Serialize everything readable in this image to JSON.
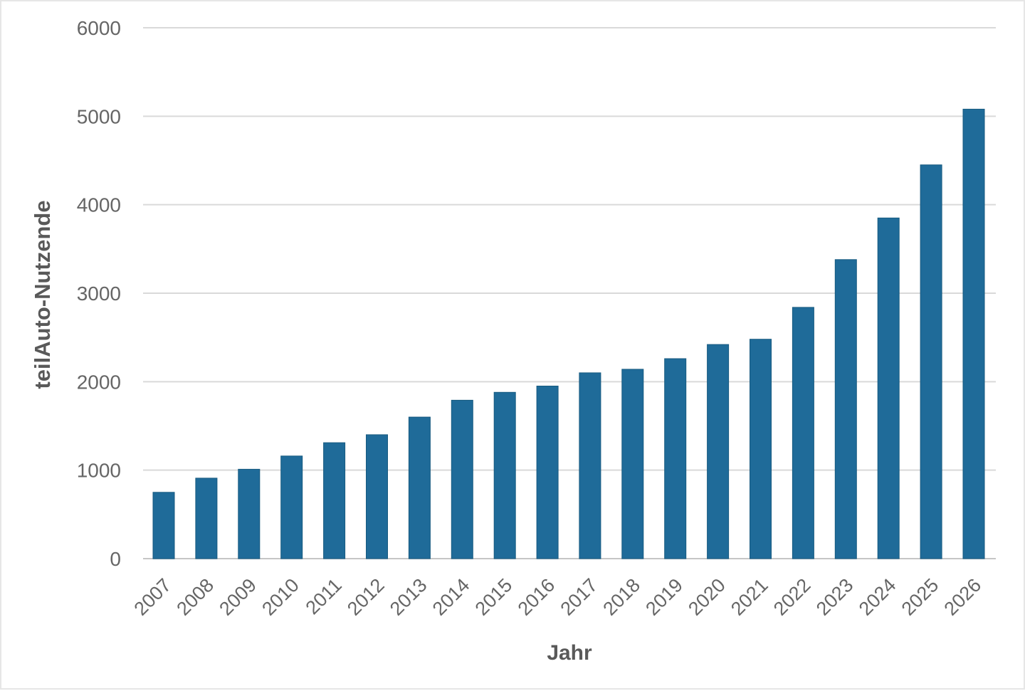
{
  "frame": {
    "background": "#ffffff",
    "border_color": "#e6e6e6"
  },
  "chart_data": {
    "type": "bar",
    "title": "",
    "xlabel": "Jahr",
    "ylabel": "teilAuto-Nutzende",
    "categories": [
      "2007",
      "2008",
      "2009",
      "2010",
      "2011",
      "2012",
      "2013",
      "2014",
      "2015",
      "2016",
      "2017",
      "2018",
      "2019",
      "2020",
      "2021",
      "2022",
      "2023",
      "2024",
      "2025",
      "2026"
    ],
    "values": [
      750,
      910,
      1010,
      1160,
      1310,
      1400,
      1600,
      1790,
      1880,
      1950,
      2100,
      2140,
      2260,
      2420,
      2480,
      2840,
      3380,
      3850,
      4450,
      5080
    ],
    "ylim": [
      0,
      6000
    ],
    "yticks": [
      0,
      1000,
      2000,
      3000,
      4000,
      5000,
      6000
    ],
    "grid": true,
    "legend": false,
    "bar_color": "#1f6b99",
    "bar_border_color": "#175a80",
    "gridline_color": "#d9d9d9",
    "axis_line_color": "#c6c6c6",
    "tick_label_color": "#666666",
    "axis_title_color": "#595959"
  }
}
